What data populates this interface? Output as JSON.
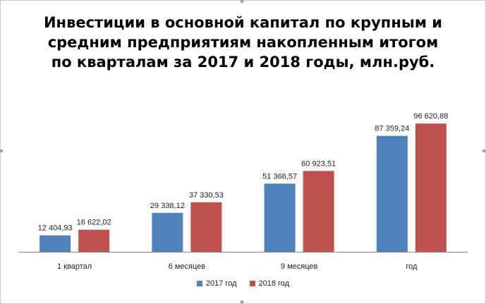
{
  "chart_data": {
    "type": "bar",
    "title_lines": [
      "Инвестиции в основной капитал по крупным и",
      "средним предприятиям накопленным итогом",
      "по кварталам за 2017 и 2018 годы, млн.руб."
    ],
    "categories": [
      "1 квартал",
      "6 месяцев",
      "9 месяцев",
      "год"
    ],
    "series": [
      {
        "name": "2017 год",
        "color": "#4f81bd",
        "values": [
          12404.93,
          29338.12,
          51366.57,
          87359.24
        ],
        "labels": [
          "12 404,93",
          "29 338,12",
          "51 366,57",
          "87 359,24"
        ]
      },
      {
        "name": "2018 год",
        "color": "#c0504d",
        "values": [
          16622.02,
          37330.53,
          60923.51,
          96620.88
        ],
        "labels": [
          "16 622,02",
          "37 330,53",
          "60 923,51",
          "96 620,88"
        ]
      }
    ],
    "ylim": [
      0,
      110000
    ],
    "grid": false,
    "legend_position": "bottom"
  }
}
